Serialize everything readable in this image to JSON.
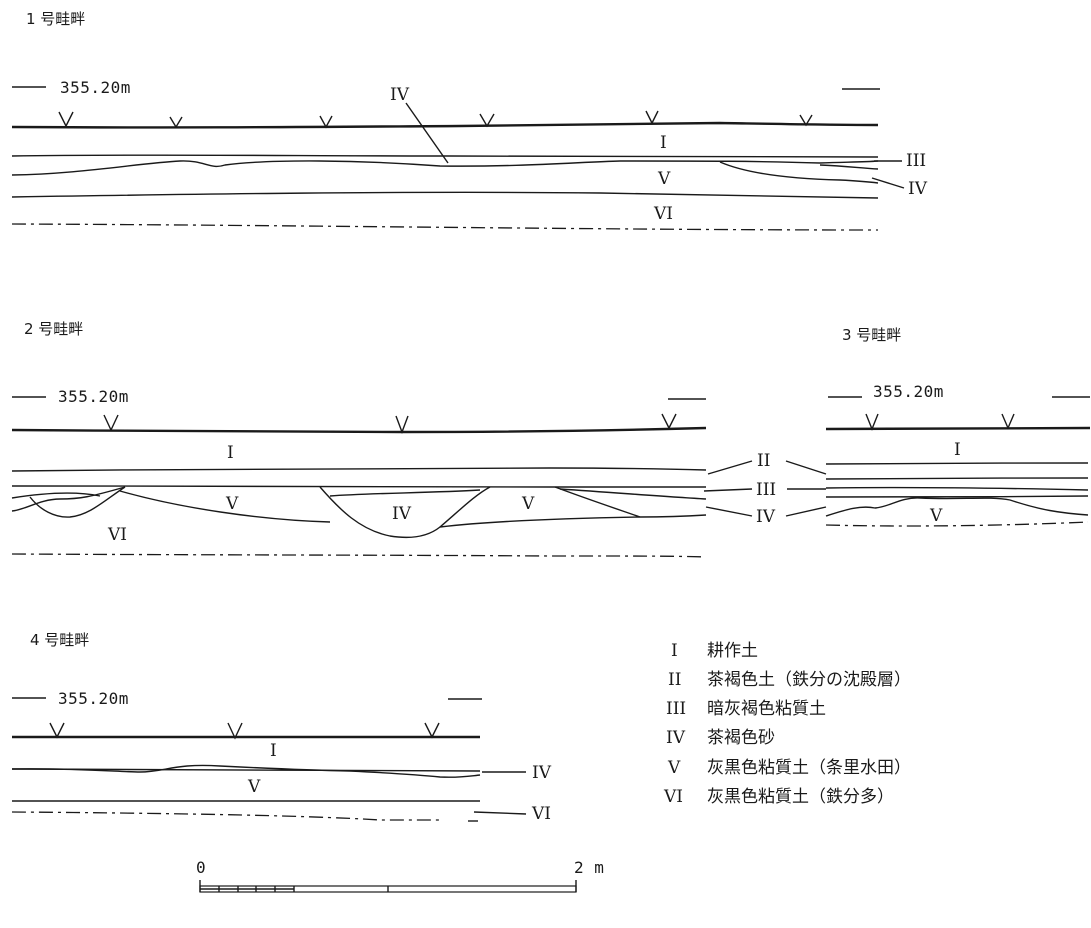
{
  "sections": {
    "s1": {
      "title": "1 号畦畔",
      "elev": "355.20m"
    },
    "s2": {
      "title": "2 号畦畔",
      "elev": "355.20m"
    },
    "s3": {
      "title": "3 号畦畔",
      "elev": "355.20m"
    },
    "s4": {
      "title": "4 号畦畔",
      "elev": "355.20m"
    }
  },
  "layers": {
    "I": "I",
    "II": "II",
    "III": "III",
    "IV": "IV",
    "V": "V",
    "VI": "VI"
  },
  "legend": [
    {
      "num": "I",
      "desc": "耕作土"
    },
    {
      "num": "II",
      "desc": "茶褐色土（鉄分の沈殿層）"
    },
    {
      "num": "III",
      "desc": "暗灰褐色粘質土"
    },
    {
      "num": "IV",
      "desc": "茶褐色砂"
    },
    {
      "num": "V",
      "desc": "灰黒色粘質土（条里水田）"
    },
    {
      "num": "VI",
      "desc": "灰黒色粘質土（鉄分多）"
    }
  ],
  "scale": {
    "start": "0",
    "end": "2 m"
  }
}
